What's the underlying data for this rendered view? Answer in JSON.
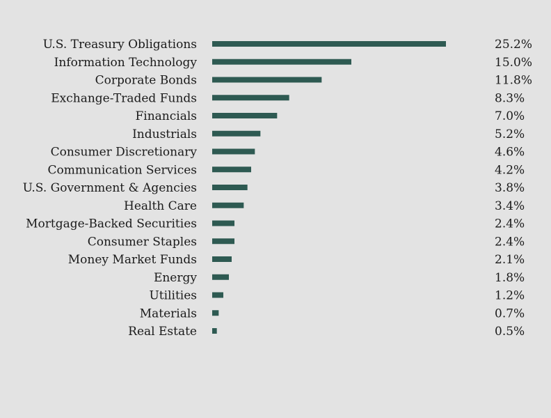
{
  "chart_data": {
    "type": "bar",
    "orientation": "horizontal",
    "bar_color": "#2e5a52",
    "background_color": "#e3e3e3",
    "value_suffix": "%",
    "categories": [
      "U.S. Treasury Obligations",
      "Information Technology",
      "Corporate Bonds",
      "Exchange-Traded Funds",
      "Financials",
      "Industrials",
      "Consumer Discretionary",
      "Communication Services",
      "U.S. Government & Agencies",
      "Health Care",
      "Mortgage-Backed Securities",
      "Consumer Staples",
      "Money Market Funds",
      "Energy",
      "Utilities",
      "Materials",
      "Real Estate"
    ],
    "values": [
      25.2,
      15.0,
      11.8,
      8.3,
      7.0,
      5.2,
      4.6,
      4.2,
      3.8,
      3.4,
      2.4,
      2.4,
      2.1,
      1.8,
      1.2,
      0.7,
      0.5
    ],
    "value_labels": [
      "25.2%",
      "15.0%",
      "11.8%",
      "8.3%",
      "7.0%",
      "5.2%",
      "4.6%",
      "4.2%",
      "3.8%",
      "3.4%",
      "2.4%",
      "2.4%",
      "2.1%",
      "1.8%",
      "1.2%",
      "0.7%",
      "0.5%"
    ],
    "xlim": [
      0,
      25.2
    ],
    "grid": false,
    "legend": "none"
  }
}
